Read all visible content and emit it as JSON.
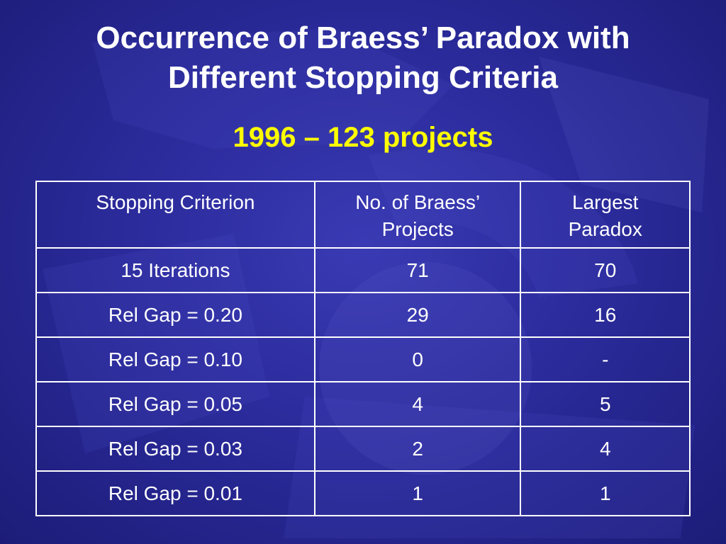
{
  "slide": {
    "title_line1": "Occurrence of Braess’ Paradox with",
    "title_line2": "Different Stopping Criteria",
    "subtitle": "1996 – 123 projects",
    "background_color": "#2b2b9c",
    "accent_color": "#ffff00"
  },
  "table": {
    "headers": [
      {
        "line1": "Stopping Criterion",
        "line2": ""
      },
      {
        "line1": "No. of Braess’",
        "line2": "Projects"
      },
      {
        "line1": "Largest",
        "line2": "Paradox"
      }
    ],
    "rows": [
      [
        "15 Iterations",
        "71",
        "70"
      ],
      [
        "Rel Gap = 0.20",
        "29",
        "16"
      ],
      [
        "Rel Gap = 0.10",
        "0",
        "-"
      ],
      [
        "Rel Gap = 0.05",
        "4",
        "5"
      ],
      [
        "Rel Gap = 0.03",
        "2",
        "4"
      ],
      [
        "Rel Gap = 0.01",
        "1",
        "1"
      ]
    ]
  }
}
